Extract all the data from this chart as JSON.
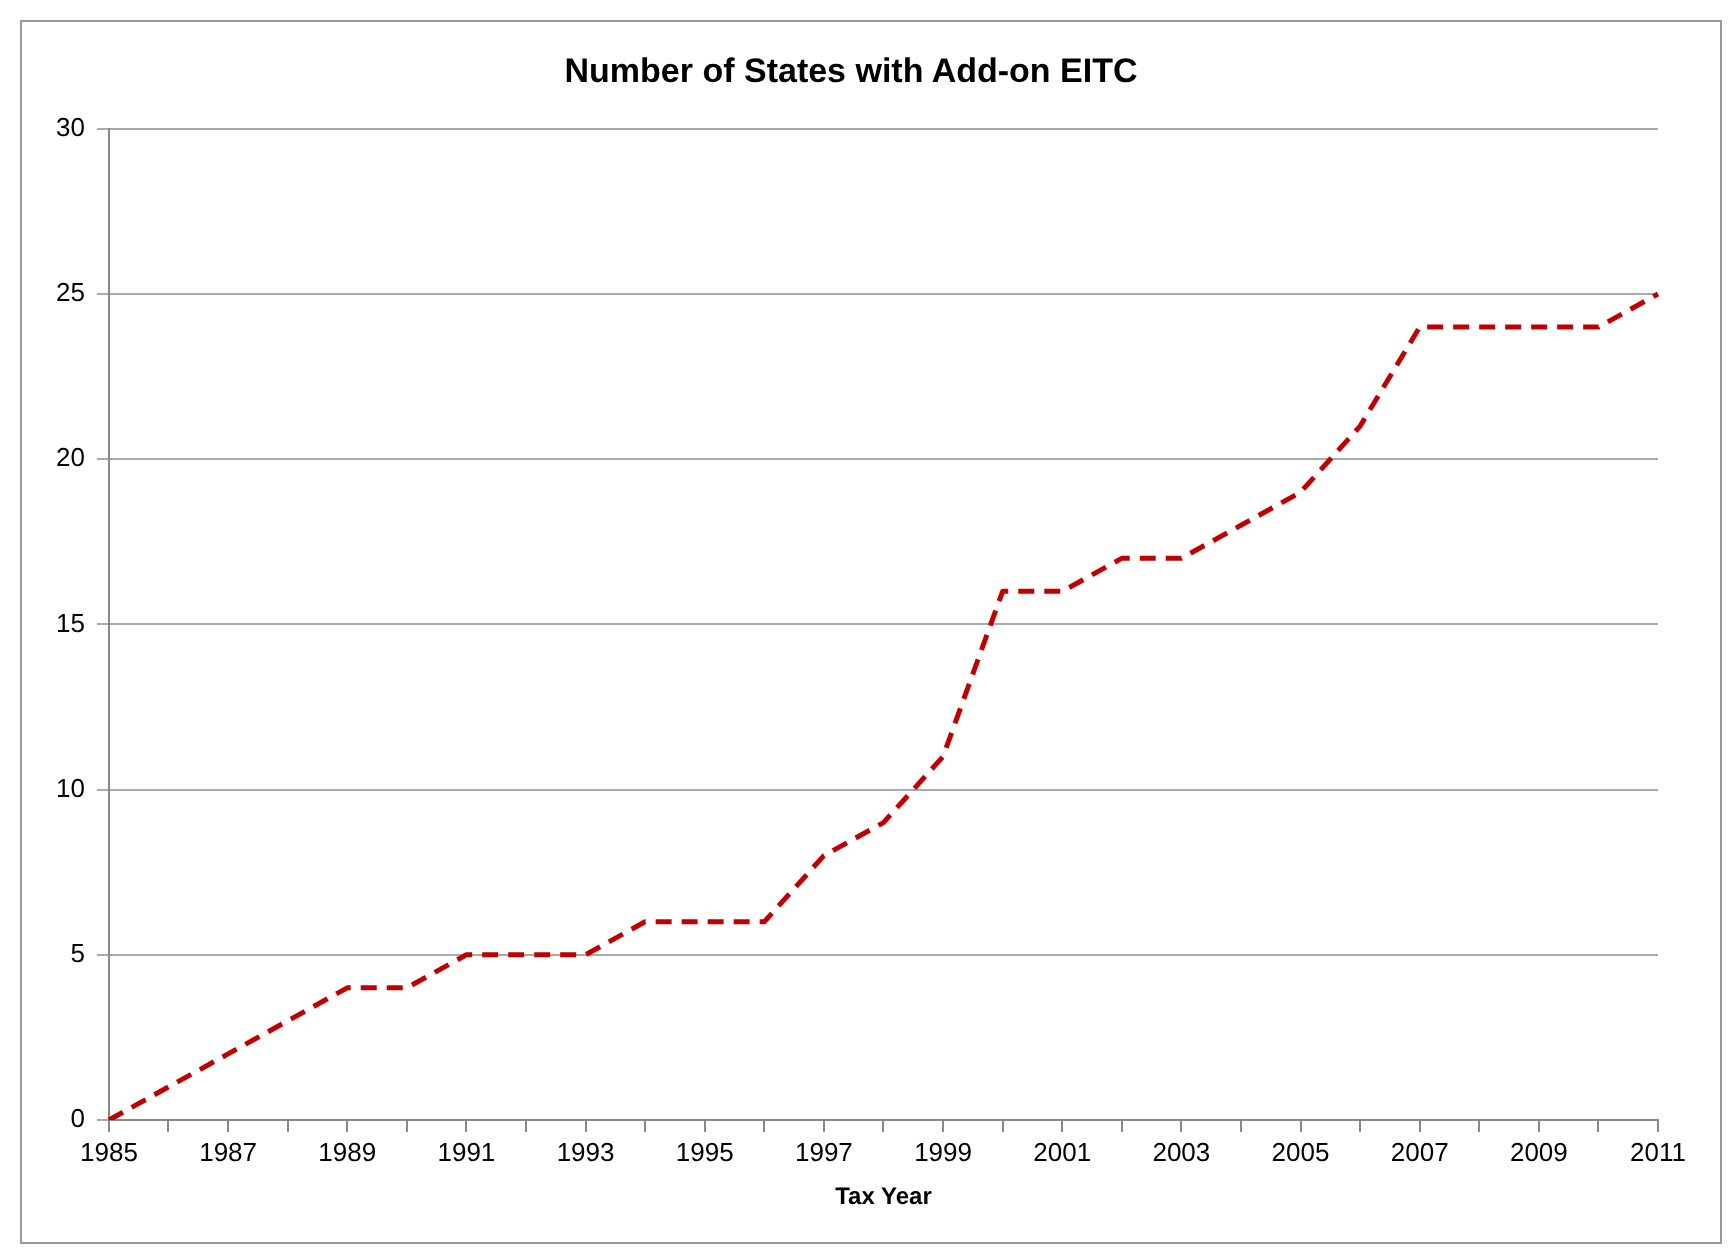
{
  "chart_data": {
    "type": "line",
    "title": "Number of States with Add-on EITC",
    "xlabel": "Tax Year",
    "categories": [
      "1985",
      null,
      "1987",
      null,
      "1989",
      null,
      "1991",
      null,
      "1993",
      null,
      "1995",
      null,
      "1997",
      null,
      "1999",
      null,
      "2001",
      null,
      "2003",
      null,
      "2005",
      null,
      "2007",
      null,
      "2009",
      null,
      "2011"
    ],
    "series": [
      {
        "color": "#c00000",
        "values": [
          0,
          1,
          2,
          3,
          4,
          4,
          5,
          5,
          5,
          6,
          6,
          6,
          8,
          9,
          11,
          16,
          16,
          17,
          17,
          18,
          19,
          21,
          24,
          24,
          24,
          24,
          25
        ]
      }
    ],
    "ylim": [
      0,
      30
    ],
    "yticks": [
      0,
      5,
      10,
      15,
      20,
      25,
      30
    ],
    "grid": "y",
    "legend": false,
    "marker": "none",
    "line_style": "dashed"
  }
}
